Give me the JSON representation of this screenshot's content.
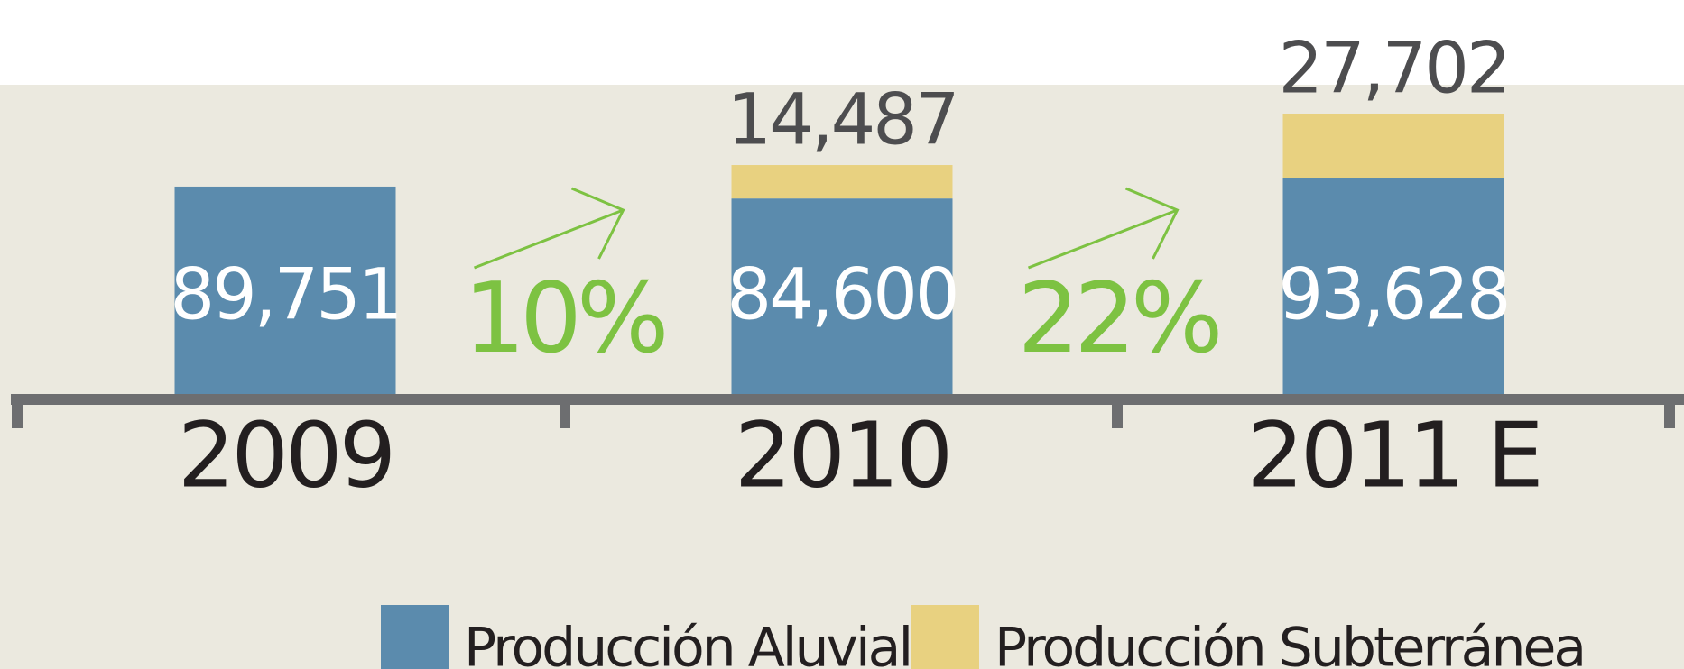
{
  "chart_data": {
    "type": "bar",
    "stacked": true,
    "categories": [
      "2009",
      "2010",
      "2011 E"
    ],
    "series": [
      {
        "name": "Producción Aluvial",
        "color": "#5b8bad",
        "values": [
          89751,
          84600,
          93628
        ],
        "value_labels": [
          "89,751",
          "84,600",
          "93,628"
        ]
      },
      {
        "name": "Producción Subterránea",
        "color": "#e8d180",
        "values": [
          null,
          14487,
          27702
        ],
        "value_labels": [
          null,
          "14,487",
          "27,702"
        ]
      }
    ],
    "growth_labels": [
      "10%",
      "22%"
    ]
  }
}
